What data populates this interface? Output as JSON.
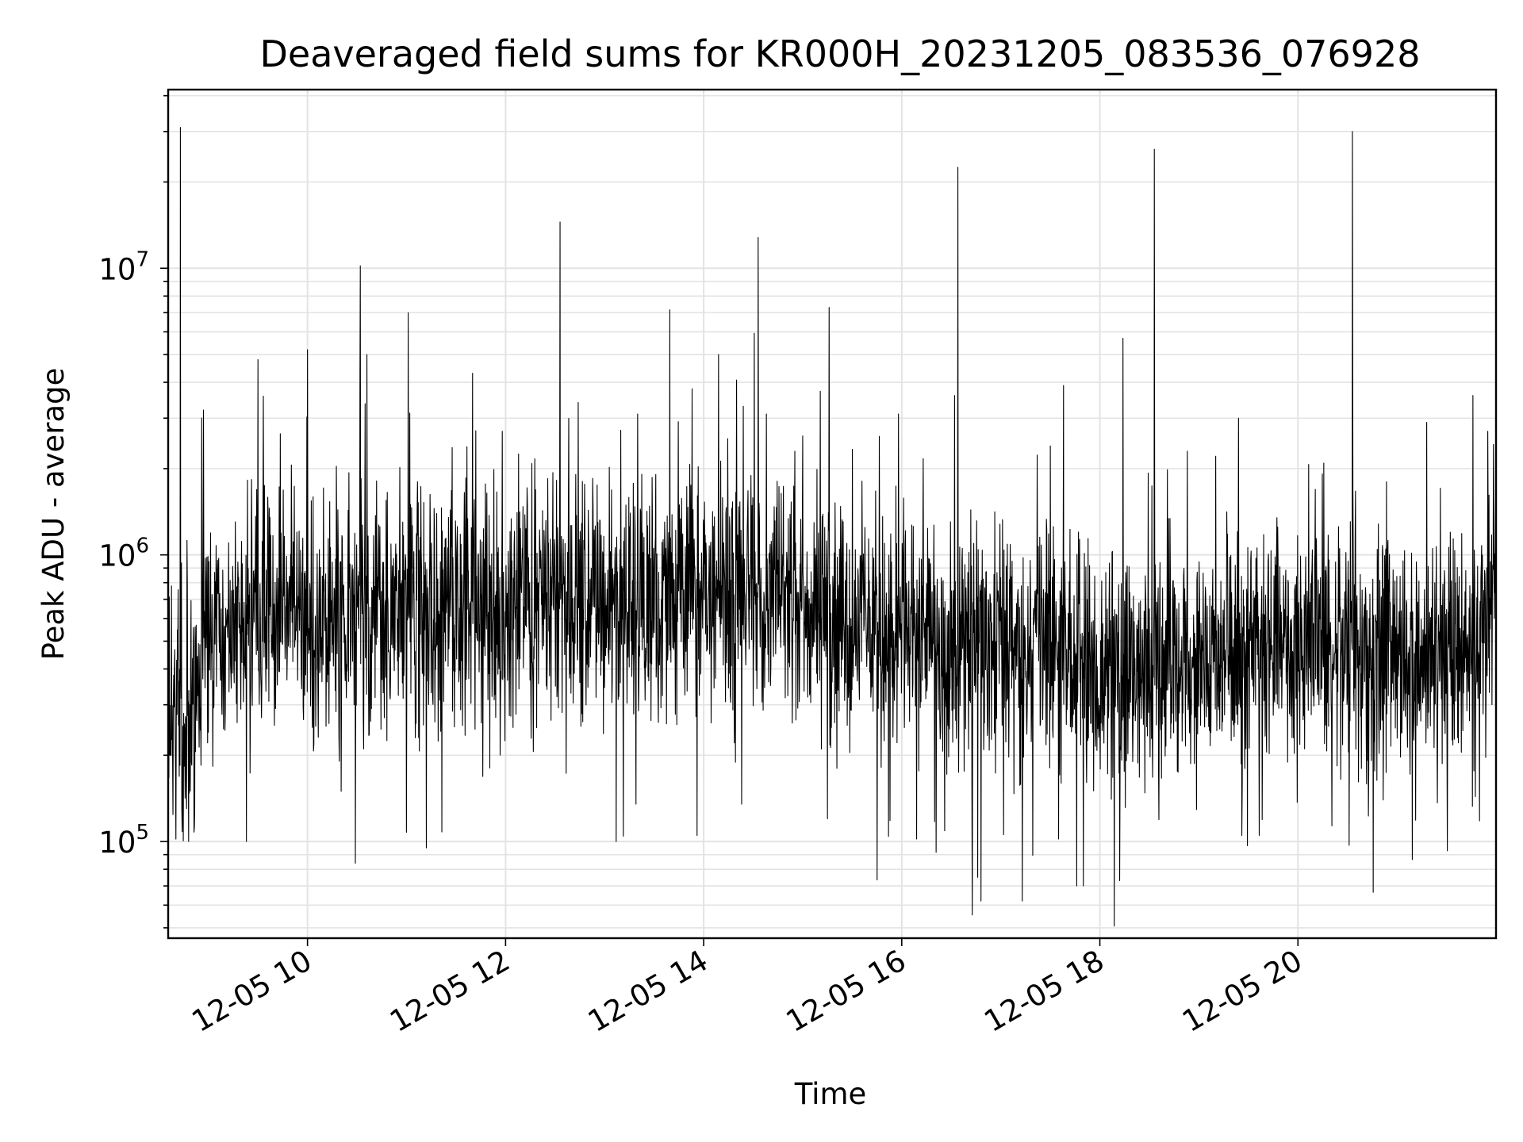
{
  "chart_data": {
    "type": "line",
    "title": "Deaveraged field sums for KR000H_20231205_083536_076928",
    "xlabel": "Time",
    "ylabel": "Peak ADU - average",
    "x_start": "2023-12-05 08:35:36",
    "x_end": "2023-12-05 22:00:00",
    "xlim": [
      "2023-12-05 08:35:36",
      "2023-12-05 22:00:00"
    ],
    "ylim": [
      46000,
      42000000
    ],
    "y_scale": "log",
    "x_ticks": [
      {
        "value": "2023-12-05 10:00",
        "label": "12-05 10"
      },
      {
        "value": "2023-12-05 12:00",
        "label": "12-05 12"
      },
      {
        "value": "2023-12-05 14:00",
        "label": "12-05 14"
      },
      {
        "value": "2023-12-05 16:00",
        "label": "12-05 16"
      },
      {
        "value": "2023-12-05 18:00",
        "label": "12-05 18"
      },
      {
        "value": "2023-12-05 20:00",
        "label": "12-05 20"
      }
    ],
    "y_ticks": [
      {
        "value": 100000,
        "base": "10",
        "exp": "5"
      },
      {
        "value": 1000000,
        "base": "10",
        "exp": "6"
      },
      {
        "value": 10000000,
        "base": "10",
        "exp": "7"
      }
    ],
    "grid": true,
    "line_color": "#000000",
    "baseline": [
      {
        "t": "08:35",
        "y": 260000
      },
      {
        "t": "08:50",
        "y": 290000
      },
      {
        "t": "09:00",
        "y": 520000
      },
      {
        "t": "09:30",
        "y": 580000
      },
      {
        "t": "10:00",
        "y": 620000
      },
      {
        "t": "11:00",
        "y": 640000
      },
      {
        "t": "12:00",
        "y": 700000
      },
      {
        "t": "13:00",
        "y": 720000
      },
      {
        "t": "14:00",
        "y": 720000
      },
      {
        "t": "15:00",
        "y": 680000
      },
      {
        "t": "16:00",
        "y": 540000
      },
      {
        "t": "17:00",
        "y": 470000
      },
      {
        "t": "18:00",
        "y": 400000
      },
      {
        "t": "19:00",
        "y": 440000
      },
      {
        "t": "20:00",
        "y": 480000
      },
      {
        "t": "21:00",
        "y": 440000
      },
      {
        "t": "21:30",
        "y": 400000
      },
      {
        "t": "22:00",
        "y": 700000
      }
    ],
    "spikes_up": [
      {
        "t": "08:43",
        "y": 31000000
      },
      {
        "t": "08:57",
        "y": 3200000
      },
      {
        "t": "09:30",
        "y": 4800000
      },
      {
        "t": "10:00",
        "y": 5200000
      },
      {
        "t": "10:32",
        "y": 10200000
      },
      {
        "t": "10:36",
        "y": 5000000
      },
      {
        "t": "11:01",
        "y": 7000000
      },
      {
        "t": "11:40",
        "y": 4300000
      },
      {
        "t": "11:58",
        "y": 2700000
      },
      {
        "t": "12:33",
        "y": 14500000
      },
      {
        "t": "12:44",
        "y": 3400000
      },
      {
        "t": "13:20",
        "y": 3100000
      },
      {
        "t": "13:53",
        "y": 3800000
      },
      {
        "t": "14:09",
        "y": 5000000
      },
      {
        "t": "14:24",
        "y": 3300000
      },
      {
        "t": "14:33",
        "y": 12800000
      },
      {
        "t": "14:38",
        "y": 3100000
      },
      {
        "t": "15:00",
        "y": 2600000
      },
      {
        "t": "15:16",
        "y": 7300000
      },
      {
        "t": "15:58",
        "y": 3100000
      },
      {
        "t": "16:32",
        "y": 3600000
      },
      {
        "t": "16:34",
        "y": 22500000
      },
      {
        "t": "17:30",
        "y": 2400000
      },
      {
        "t": "17:38",
        "y": 3900000
      },
      {
        "t": "18:14",
        "y": 5700000
      },
      {
        "t": "18:33",
        "y": 26000000
      },
      {
        "t": "18:53",
        "y": 2300000
      },
      {
        "t": "19:24",
        "y": 3000000
      },
      {
        "t": "20:33",
        "y": 30000000
      },
      {
        "t": "21:18",
        "y": 2900000
      },
      {
        "t": "21:46",
        "y": 3600000
      },
      {
        "t": "21:55",
        "y": 2700000
      }
    ],
    "spikes_down": [
      {
        "t": "08:48",
        "y": 100000
      },
      {
        "t": "09:23",
        "y": 100000
      },
      {
        "t": "10:29",
        "y": 84000
      },
      {
        "t": "11:12",
        "y": 95000
      },
      {
        "t": "13:07",
        "y": 100000
      },
      {
        "t": "13:19",
        "y": 135000
      },
      {
        "t": "13:56",
        "y": 105000
      },
      {
        "t": "14:23",
        "y": 135000
      },
      {
        "t": "15:15",
        "y": 120000
      },
      {
        "t": "16:09",
        "y": 102000
      },
      {
        "t": "16:26",
        "y": 109000
      },
      {
        "t": "16:46",
        "y": 75000
      },
      {
        "t": "16:48",
        "y": 62000
      },
      {
        "t": "17:13",
        "y": 62000
      },
      {
        "t": "17:35",
        "y": 102000
      },
      {
        "t": "17:46",
        "y": 70000
      },
      {
        "t": "17:50",
        "y": 70000
      },
      {
        "t": "18:12",
        "y": 73000
      },
      {
        "t": "19:26",
        "y": 105000
      },
      {
        "t": "20:31",
        "y": 97000
      },
      {
        "t": "21:50",
        "y": 118000
      }
    ]
  }
}
